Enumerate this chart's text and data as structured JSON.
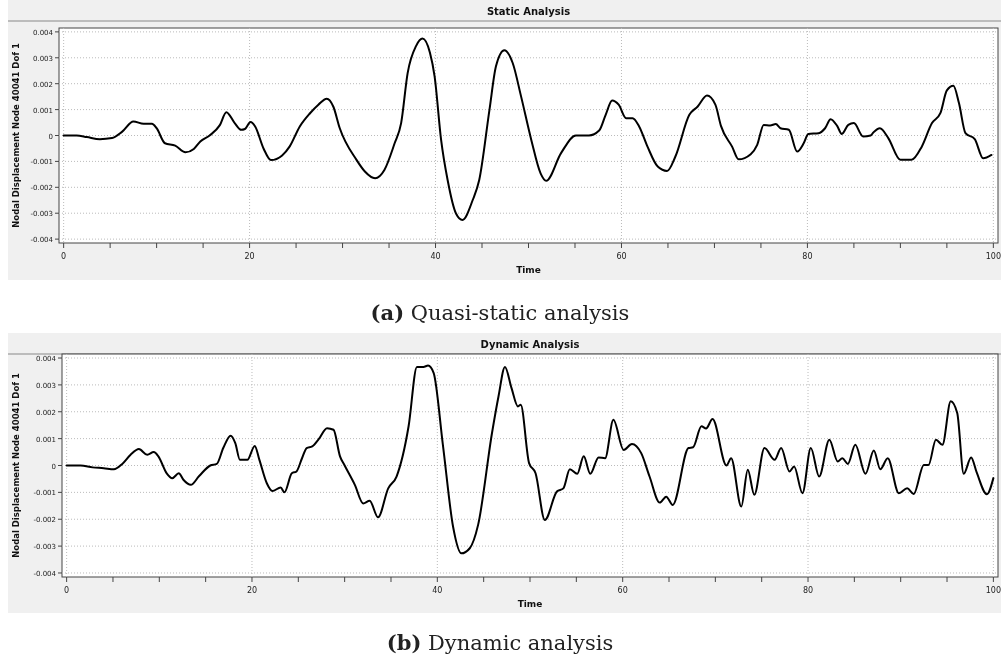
{
  "chart_data": [
    {
      "type": "line",
      "title": "Static Analysis",
      "xlabel": "Time",
      "ylabel": "Nodal Displacement Node 40041 Dof 1",
      "annotations": [
        "(a) Quasi-static analysis"
      ],
      "grid": true,
      "line_style": "solid",
      "xlim": [
        -0.5,
        100.5
      ],
      "ylim": [
        -0.00415,
        0.00415
      ],
      "xticks": [
        0,
        {
          "value": 5,
          "label": null
        },
        {
          "value": 10,
          "label": null
        },
        {
          "value": 15,
          "label": null
        },
        20,
        {
          "value": 25,
          "label": null
        },
        {
          "value": 30,
          "label": null
        },
        {
          "value": 35,
          "label": null
        },
        40,
        {
          "value": 45,
          "label": null
        },
        {
          "value": 50,
          "label": null
        },
        {
          "value": 55,
          "label": null
        },
        60,
        {
          "value": 65,
          "label": null
        },
        {
          "value": 70,
          "label": null
        },
        {
          "value": 75,
          "label": null
        },
        80,
        {
          "value": 85,
          "label": null
        },
        {
          "value": 90,
          "label": null
        },
        {
          "value": 95,
          "label": null
        },
        100
      ],
      "yticks": [
        -0.004,
        -0.003,
        -0.002,
        -0.001,
        0,
        0.001,
        0.002,
        0.003,
        0.004
      ],
      "series": [
        {
          "color": "#000000",
          "x": [
            0,
            1.4,
            2.5,
            3.9,
            5.2,
            6.3,
            7.5,
            8.6,
            9.5,
            10.0,
            10.9,
            12.0,
            13.1,
            14.0,
            14.7,
            15.7,
            16.8,
            17.5,
            18.4,
            19.1,
            19.5,
            20.1,
            20.6,
            21.5,
            22.3,
            23.5,
            24.3,
            25.4,
            26.5,
            27.4,
            28.3,
            29.0,
            29.7,
            31.5,
            32.4,
            33.5,
            34.5,
            35.6,
            36.3,
            37.0,
            37.9,
            38.6,
            39.4,
            39.9,
            40.6,
            41.3,
            42.2,
            42.9,
            44.0,
            44.7,
            45.8,
            46.5,
            47.4,
            48.3,
            49.2,
            50.3,
            51.3,
            51.9,
            53.5,
            55.1,
            56.5,
            57.6,
            58.3,
            59.0,
            59.7,
            60.5,
            61.2,
            61.9,
            62.8,
            63.9,
            64.9,
            65.8,
            67.3,
            68.2,
            69.2,
            70.1,
            70.7,
            71.9,
            72.6,
            73.9,
            74.6,
            75.3,
            76.0,
            76.6,
            77.1,
            78.0,
            78.9,
            79.6,
            80.1,
            81.2,
            81.9,
            82.5,
            83.2,
            83.7,
            84.4,
            85.0,
            86.0,
            86.8,
            87.1,
            87.8,
            88.7,
            90.0,
            91.2,
            92.3,
            93.4,
            94.3,
            95.0,
            95.7,
            96.3,
            97.0,
            98.0,
            98.9,
            99.8
          ],
          "values": [
            0,
            0,
            -6e-05,
            -0.00014,
            -0.0001,
            0.00015,
            0.00054,
            0.00045,
            0.00045,
            0.00028,
            -0.0003,
            -0.00039,
            -0.00065,
            -0.00052,
            -0.00023,
            0,
            0.0004,
            0.0009,
            0.00048,
            0.00022,
            0.00025,
            0.00052,
            0.00035,
            -0.0005,
            -0.00095,
            -0.00077,
            -0.00043,
            0.00035,
            0.00086,
            0.00119,
            0.00142,
            0.00112,
            0.00028,
            -0.00094,
            -0.00139,
            -0.00165,
            -0.00133,
            -0.0003,
            0.00048,
            0.00241,
            0.00345,
            0.00374,
            0.00319,
            0.00228,
            -0.00017,
            -0.00172,
            -0.00301,
            -0.00326,
            -0.00249,
            -0.00172,
            0.00099,
            0.00267,
            0.00329,
            0.0028,
            0.00151,
            -0.00017,
            -0.00146,
            -0.00175,
            -0.00068,
            0,
            0,
            0.00019,
            0.0008,
            0.00135,
            0.00119,
            0.00067,
            0.00067,
            0.00035,
            -0.00043,
            -0.0012,
            -0.00137,
            -0.00081,
            0.0008,
            0.00112,
            0.00154,
            0.00119,
            0.00037,
            -0.00043,
            -0.00092,
            -0.00072,
            -0.00036,
            0.00041,
            0.00039,
            0.00044,
            0.00028,
            0.00022,
            -0.00062,
            -0.0003,
            6e-05,
            9e-05,
            0.00028,
            0.00063,
            0.00037,
            6e-05,
            0.00041,
            0.00048,
            -4e-05,
            0,
            0.00012,
            0.00028,
            -0.0001,
            -0.00094,
            -0.00094,
            -0.00043,
            0.00048,
            0.00086,
            0.00174,
            0.00192,
            0.00125,
            9e-05,
            -0.00014,
            -0.00088,
            -0.00075
          ]
        }
      ]
    },
    {
      "type": "line",
      "title": "Dynamic Analysis",
      "xlabel": "Time",
      "ylabel": "Nodal Displacement Node 40041 Dof 1",
      "annotations": [
        "(b) Dynamic analysis"
      ],
      "grid": true,
      "line_style": "solid",
      "xlim": [
        -0.5,
        100.5
      ],
      "ylim": [
        -0.00415,
        0.00415
      ],
      "xticks": [
        0,
        {
          "value": 5,
          "label": null
        },
        {
          "value": 10,
          "label": null
        },
        {
          "value": 15,
          "label": null
        },
        20,
        {
          "value": 25,
          "label": null
        },
        {
          "value": 30,
          "label": null
        },
        {
          "value": 35,
          "label": null
        },
        40,
        {
          "value": 45,
          "label": null
        },
        {
          "value": 50,
          "label": null
        },
        {
          "value": 55,
          "label": null
        },
        60,
        {
          "value": 65,
          "label": null
        },
        {
          "value": 70,
          "label": null
        },
        {
          "value": 75,
          "label": null
        },
        80,
        {
          "value": 85,
          "label": null
        },
        {
          "value": 90,
          "label": null
        },
        {
          "value": 95,
          "label": null
        },
        100
      ],
      "yticks": [
        -0.004,
        -0.003,
        -0.002,
        -0.001,
        0,
        0.001,
        0.002,
        0.003,
        0.004
      ],
      "series": [
        {
          "color": "#000000",
          "x": [
            0,
            1.5,
            2.8,
            4.0,
            5.1,
            6.0,
            6.9,
            7.8,
            8.7,
            9.4,
            9.9,
            10.8,
            11.4,
            12.1,
            12.6,
            13.4,
            14.3,
            15.5,
            16.2,
            16.9,
            17.7,
            18.2,
            18.7,
            19.5,
            20.3,
            20.8,
            21.6,
            22.2,
            23.1,
            23.5,
            24.3,
            24.8,
            25.4,
            25.9,
            26.5,
            27.2,
            28.1,
            28.8,
            29.5,
            30.0,
            31.1,
            32.0,
            32.7,
            33.6,
            34.7,
            35.6,
            36.9,
            37.8,
            38.5,
            39.0,
            39.6,
            40.6,
            41.7,
            42.6,
            43.5,
            44.4,
            45.9,
            46.6,
            47.3,
            48.0,
            48.7,
            49.0,
            49.9,
            50.6,
            51.6,
            52.9,
            53.6,
            54.3,
            55.1,
            55.8,
            56.5,
            57.4,
            58.1,
            59.0,
            60.1,
            61.0,
            62.0,
            62.9,
            64.0,
            64.7,
            65.4,
            67.1,
            67.6,
            68.5,
            69.0,
            69.7,
            71.2,
            71.7,
            72.8,
            73.5,
            74.2,
            75.3,
            76.4,
            77.1,
            78.0,
            78.5,
            79.4,
            80.3,
            81.2,
            82.3,
            83.2,
            83.7,
            84.3,
            85.1,
            86.2,
            87.1,
            87.8,
            88.6,
            89.8,
            90.7,
            91.4,
            92.5,
            93.0,
            93.8,
            94.5,
            95.4,
            96.1,
            96.8,
            97.6,
            98.2,
            99.3,
            100.0
          ],
          "values": [
            0,
            0,
            -7e-05,
            -0.0001,
            -0.00014,
            6e-05,
            0.0004,
            0.00061,
            0.0004,
            0.0005,
            0.00034,
            -0.00029,
            -0.00047,
            -0.00029,
            -0.00053,
            -0.00072,
            -0.00039,
            0,
            6e-05,
            0.00065,
            0.00111,
            0.00083,
            0.00021,
            0.00021,
            0.00073,
            0.00021,
            -0.00066,
            -0.00095,
            -0.00082,
            -0.001,
            -0.00029,
            -0.00022,
            0.00027,
            0.00065,
            0.00071,
            0.00098,
            0.00139,
            0.00133,
            0.00034,
            0,
            -0.00072,
            -0.00141,
            -0.00131,
            -0.00193,
            -0.00085,
            -0.00041,
            0.00146,
            0.00367,
            0.00367,
            0.00372,
            0.00345,
            0.00077,
            -0.00228,
            -0.00327,
            -0.00308,
            -0.00221,
            0.00121,
            0.00257,
            0.00367,
            0.00289,
            0.0022,
            0.00226,
            9e-05,
            -0.00029,
            -0.00203,
            -0.00097,
            -0.00085,
            -0.00014,
            -0.00031,
            0.00034,
            -0.00031,
            0.0003,
            0.00027,
            0.0017,
            0.00058,
            0.0008,
            0.00046,
            -0.00041,
            -0.00138,
            -0.00116,
            -0.00147,
            0.00065,
            0.00068,
            0.00146,
            0.00138,
            0.00173,
            0,
            0.00027,
            -0.00153,
            -0.00016,
            -0.00109,
            0.00065,
            0.00021,
            0.00065,
            -0.00022,
            -4e-05,
            -0.00103,
            0.00065,
            -0.00041,
            0.00096,
            0.00015,
            0.00027,
            6e-05,
            0.00077,
            -0.00031,
            0.00056,
            -0.00014,
            0.00027,
            -0.00103,
            -0.00085,
            -0.00106,
            2e-05,
            2e-05,
            0.00096,
            0.00077,
            0.00239,
            0.00195,
            -0.00031,
            0.0003,
            -0.00026,
            -0.00107,
            -0.00047
          ]
        }
      ]
    }
  ]
}
